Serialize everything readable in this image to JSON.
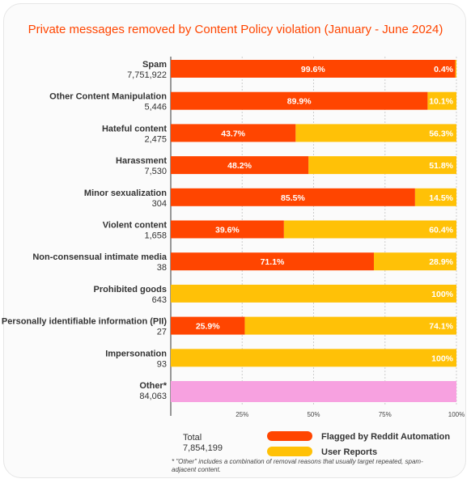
{
  "title": "Private messages removed by Content Policy violation  (January - June 2024)",
  "footnote": "* \"Other\" includes a combination of removal reasons that usually target repeated, spam-adjacent content.",
  "total": {
    "label": "Total",
    "value": "7,854,199"
  },
  "colors": {
    "automation": "#ff4500",
    "user_reports": "#ffc107",
    "other": "#f7a1e0",
    "title": "#ff4500",
    "grid": "#cccccc"
  },
  "chart_data": {
    "type": "bar",
    "orientation": "horizontal",
    "stacked": true,
    "title": "Private messages removed by Content Policy violation  (January - June 2024)",
    "xlim": [
      0,
      100
    ],
    "x_ticks": [
      "25%",
      "50%",
      "75%",
      "100%"
    ],
    "legend_position": "bottom",
    "series": [
      {
        "name": "Flagged by Reddit Automation",
        "color": "#ff4500"
      },
      {
        "name": "User Reports",
        "color": "#ffc107"
      }
    ],
    "categories": [
      {
        "label": "Spam",
        "count": "7,751,922",
        "automation": 99.6,
        "user": 0.4,
        "automation_label": "99.6%",
        "user_label": "0.4%"
      },
      {
        "label": "Other Content Manipulation",
        "count": "5,446",
        "automation": 89.9,
        "user": 10.1,
        "automation_label": "89.9%",
        "user_label": "10.1%"
      },
      {
        "label": "Hateful content",
        "count": "2,475",
        "automation": 43.7,
        "user": 56.3,
        "automation_label": "43.7%",
        "user_label": "56.3%"
      },
      {
        "label": "Harassment",
        "count": "7,530",
        "automation": 48.2,
        "user": 51.8,
        "automation_label": "48.2%",
        "user_label": "51.8%"
      },
      {
        "label": "Minor sexualization",
        "count": "304",
        "automation": 85.5,
        "user": 14.5,
        "automation_label": "85.5%",
        "user_label": "14.5%"
      },
      {
        "label": "Violent content",
        "count": "1,658",
        "automation": 39.6,
        "user": 60.4,
        "automation_label": "39.6%",
        "user_label": "60.4%"
      },
      {
        "label": "Non-consensual intimate media",
        "count": "38",
        "automation": 71.1,
        "user": 28.9,
        "automation_label": "71.1%",
        "user_label": "28.9%"
      },
      {
        "label": "Prohibited goods",
        "count": "643",
        "automation": 0,
        "user": 100,
        "automation_label": "",
        "user_label": "100%"
      },
      {
        "label": "Personally identifiable information (PII)",
        "count": "27",
        "automation": 25.9,
        "user": 74.1,
        "automation_label": "25.9%",
        "user_label": "74.1%"
      },
      {
        "label": "Impersonation",
        "count": "93",
        "automation": 0,
        "user": 100,
        "automation_label": "",
        "user_label": "100%"
      },
      {
        "label": "Other*",
        "count": "84,063",
        "other": 100,
        "automation_label": "",
        "user_label": ""
      }
    ]
  }
}
